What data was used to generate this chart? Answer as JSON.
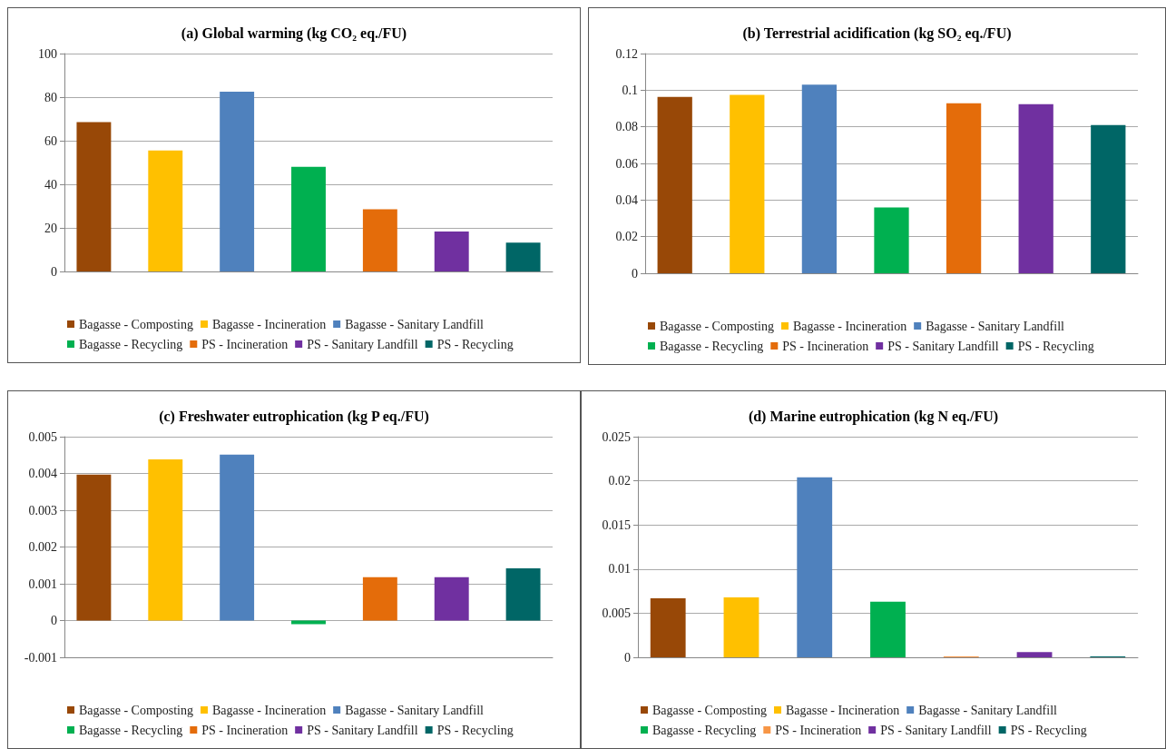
{
  "chart_data": [
    {
      "type": "bar",
      "title": "(a) Global warming (kg CO₂ eq./FU)",
      "categories": [
        null
      ],
      "ylim": [
        0,
        100
      ],
      "yticks": [
        0,
        20,
        40,
        60,
        80,
        100
      ],
      "grid": "y",
      "legend": "bottom",
      "series": [
        {
          "name": "Bagasse - Composting",
          "color": "#984807",
          "values": [
            68.5
          ]
        },
        {
          "name": "Bagasse - Incineration",
          "color": "#ffc000",
          "values": [
            55.5
          ]
        },
        {
          "name": "Bagasse - Sanitary Landfill",
          "color": "#4f81bd",
          "values": [
            82.5
          ]
        },
        {
          "name": "Bagasse - Recycling",
          "color": "#00b050",
          "values": [
            48
          ]
        },
        {
          "name": "PS - Incineration",
          "color": "#e46c0a",
          "values": [
            28.5
          ]
        },
        {
          "name": "PS - Sanitary Landfill",
          "color": "#7030a0",
          "values": [
            18.3
          ]
        },
        {
          "name": "PS - Recycling",
          "color": "#006666",
          "values": [
            13.2
          ]
        }
      ]
    },
    {
      "type": "bar",
      "title": "(b) Terrestrial acidification (kg SO₂ eq./FU)",
      "categories": [
        null
      ],
      "ylim": [
        0,
        0.12
      ],
      "yticks": [
        0,
        0.02,
        0.04,
        0.06,
        0.08,
        0.1,
        0.12
      ],
      "grid": "y",
      "legend": "bottom",
      "series": [
        {
          "name": "Bagasse - Composting",
          "color": "#984807",
          "values": [
            0.0963
          ]
        },
        {
          "name": "Bagasse - Incineration",
          "color": "#ffc000",
          "values": [
            0.0975
          ]
        },
        {
          "name": "Bagasse - Sanitary Landfill",
          "color": "#4f81bd",
          "values": [
            0.103
          ]
        },
        {
          "name": "Bagasse - Recycling",
          "color": "#00b050",
          "values": [
            0.036
          ]
        },
        {
          "name": "PS - Incineration",
          "color": "#e46c0a",
          "values": [
            0.0928
          ]
        },
        {
          "name": "PS - Sanitary Landfill",
          "color": "#7030a0",
          "values": [
            0.0924
          ]
        },
        {
          "name": "PS - Recycling",
          "color": "#006666",
          "values": [
            0.081
          ]
        }
      ]
    },
    {
      "type": "bar",
      "title": "(c) Freshwater eutrophication (kg P eq./FU)",
      "categories": [
        null
      ],
      "ylim": [
        -0.001,
        0.005
      ],
      "yticks": [
        -0.001,
        0,
        0.001,
        0.002,
        0.003,
        0.004,
        0.005
      ],
      "grid": "y",
      "legend": "bottom",
      "series": [
        {
          "name": "Bagasse - Composting",
          "color": "#984807",
          "values": [
            0.00397
          ]
        },
        {
          "name": "Bagasse - Incineration",
          "color": "#ffc000",
          "values": [
            0.00438
          ]
        },
        {
          "name": "Bagasse - Sanitary Landfill",
          "color": "#4f81bd",
          "values": [
            0.00451
          ]
        },
        {
          "name": "Bagasse - Recycling",
          "color": "#00b050",
          "values": [
            -0.0001
          ]
        },
        {
          "name": "PS - Incineration",
          "color": "#e46c0a",
          "values": [
            0.00118
          ]
        },
        {
          "name": "PS - Sanitary Landfill",
          "color": "#7030a0",
          "values": [
            0.00118
          ]
        },
        {
          "name": "PS - Recycling",
          "color": "#006666",
          "values": [
            0.00142
          ]
        }
      ]
    },
    {
      "type": "bar",
      "title": "(d) Marine eutrophication (kg N eq./FU)",
      "categories": [
        null
      ],
      "ylim": [
        0,
        0.025
      ],
      "yticks": [
        0,
        0.005,
        0.01,
        0.015,
        0.02,
        0.025
      ],
      "grid": "y",
      "legend": "bottom",
      "series": [
        {
          "name": "Bagasse - Composting",
          "color": "#984807",
          "values": [
            0.0067
          ]
        },
        {
          "name": "Bagasse - Incineration",
          "color": "#ffc000",
          "values": [
            0.0068
          ]
        },
        {
          "name": "Bagasse - Sanitary Landfill",
          "color": "#4f81bd",
          "values": [
            0.0204
          ]
        },
        {
          "name": "Bagasse - Recycling",
          "color": "#00b050",
          "values": [
            0.0063
          ]
        },
        {
          "name": "PS - Incineration",
          "color": "#f79646",
          "values": [
            0.0001
          ]
        },
        {
          "name": "PS - Sanitary Landfill",
          "color": "#7030a0",
          "values": [
            0.0006
          ]
        },
        {
          "name": "PS - Recycling",
          "color": "#006666",
          "values": [
            0.0001
          ]
        }
      ]
    }
  ]
}
